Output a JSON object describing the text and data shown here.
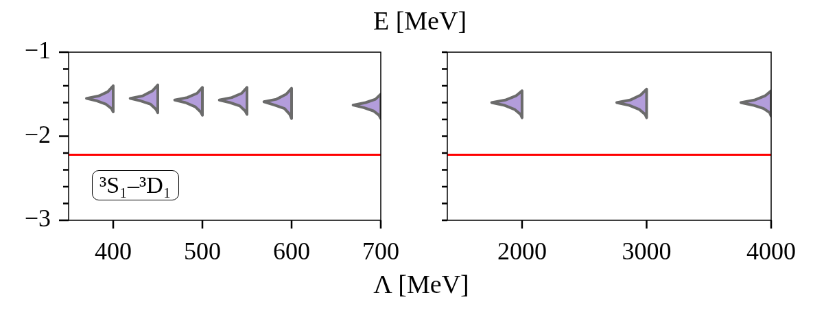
{
  "chart_data": [
    {
      "type": "area",
      "xlabel": "Λ [MeV]",
      "ylabel": "E [MeV]",
      "annotations": [
        "³S₁–³D₁"
      ],
      "xlim": [
        350,
        700
      ],
      "xticks": [
        400,
        500,
        600,
        700
      ],
      "ylim": [
        -3,
        -1
      ],
      "yticks": [
        -1,
        {
          "value": -1.2,
          "label": null
        },
        {
          "value": -1.4,
          "label": null
        },
        {
          "value": -1.6,
          "label": null
        },
        {
          "value": -1.8,
          "label": null
        },
        -2,
        {
          "value": -2.2,
          "label": null
        },
        {
          "value": -2.4,
          "label": null
        },
        {
          "value": -2.6,
          "label": null
        },
        {
          "value": -2.8,
          "label": null
        },
        -3
      ],
      "ref_lines": [
        {
          "axis": "y",
          "value": -2.22,
          "color": "#ff0000"
        }
      ],
      "series": [
        {
          "color": "#b39ddb",
          "x": [
            400,
            394,
            384,
            370,
            382,
            392,
            398,
            400,
            400
          ],
          "values": [
            -1.4,
            -1.47,
            -1.52,
            -1.55,
            -1.58,
            -1.62,
            -1.67,
            -1.71,
            -1.4
          ]
        },
        {
          "color": "#b39ddb",
          "x": [
            450,
            444,
            433,
            419,
            431,
            442,
            448,
            450,
            450
          ],
          "values": [
            -1.39,
            -1.46,
            -1.52,
            -1.55,
            -1.58,
            -1.62,
            -1.68,
            -1.72,
            -1.39
          ]
        },
        {
          "color": "#b39ddb",
          "x": [
            500,
            494,
            483,
            469,
            481,
            492,
            498,
            500,
            500
          ],
          "values": [
            -1.42,
            -1.49,
            -1.54,
            -1.57,
            -1.6,
            -1.65,
            -1.71,
            -1.75,
            -1.42
          ]
        },
        {
          "color": "#b39ddb",
          "x": [
            550,
            544,
            533,
            519,
            531,
            542,
            548,
            550,
            550
          ],
          "values": [
            -1.42,
            -1.49,
            -1.54,
            -1.57,
            -1.6,
            -1.64,
            -1.7,
            -1.74,
            -1.42
          ]
        },
        {
          "color": "#b39ddb",
          "x": [
            600,
            594,
            583,
            569,
            581,
            592,
            598,
            600,
            600
          ],
          "values": [
            -1.43,
            -1.5,
            -1.56,
            -1.59,
            -1.63,
            -1.67,
            -1.74,
            -1.79,
            -1.43
          ]
        },
        {
          "color": "#b39ddb",
          "x": [
            700,
            694,
            683,
            669,
            681,
            692,
            698,
            700,
            700
          ],
          "values": [
            -1.5,
            -1.56,
            -1.6,
            -1.63,
            -1.66,
            -1.7,
            -1.75,
            -1.79,
            -1.5
          ]
        }
      ]
    },
    {
      "type": "area",
      "tick_labels": "x",
      "xlim": [
        1400,
        4000
      ],
      "xticks": [
        2000,
        3000,
        4000
      ],
      "ylim": [
        -3,
        -1
      ],
      "yticks": [
        {
          "value": -1,
          "label": null
        },
        {
          "value": -1.2,
          "label": null
        },
        {
          "value": -1.4,
          "label": null
        },
        {
          "value": -1.6,
          "label": null
        },
        {
          "value": -1.8,
          "label": null
        },
        {
          "value": -2,
          "label": null
        },
        {
          "value": -2.2,
          "label": null
        },
        {
          "value": -2.4,
          "label": null
        },
        {
          "value": -2.6,
          "label": null
        },
        {
          "value": -2.8,
          "label": null
        },
        {
          "value": -3,
          "label": null
        }
      ],
      "ref_lines": [
        {
          "axis": "y",
          "value": -2.22,
          "color": "#ff0000"
        }
      ],
      "series": [
        {
          "color": "#b39ddb",
          "x": [
            2000,
            1951,
            1866,
            1756,
            1854,
            1939,
            1988,
            2000,
            2000
          ],
          "values": [
            -1.46,
            -1.52,
            -1.57,
            -1.6,
            -1.63,
            -1.68,
            -1.74,
            -1.78,
            -1.46
          ]
        },
        {
          "color": "#b39ddb",
          "x": [
            3000,
            2952,
            2868,
            2760,
            2856,
            2940,
            2988,
            3000,
            3000
          ],
          "values": [
            -1.44,
            -1.51,
            -1.57,
            -1.6,
            -1.63,
            -1.68,
            -1.74,
            -1.78,
            -1.44
          ]
        },
        {
          "color": "#b39ddb",
          "x": [
            4000,
            3951,
            3866,
            3757,
            3854,
            3939,
            3988,
            4000,
            4000
          ],
          "values": [
            -1.46,
            -1.52,
            -1.57,
            -1.6,
            -1.63,
            -1.67,
            -1.72,
            -1.76,
            -1.46
          ]
        }
      ]
    }
  ]
}
